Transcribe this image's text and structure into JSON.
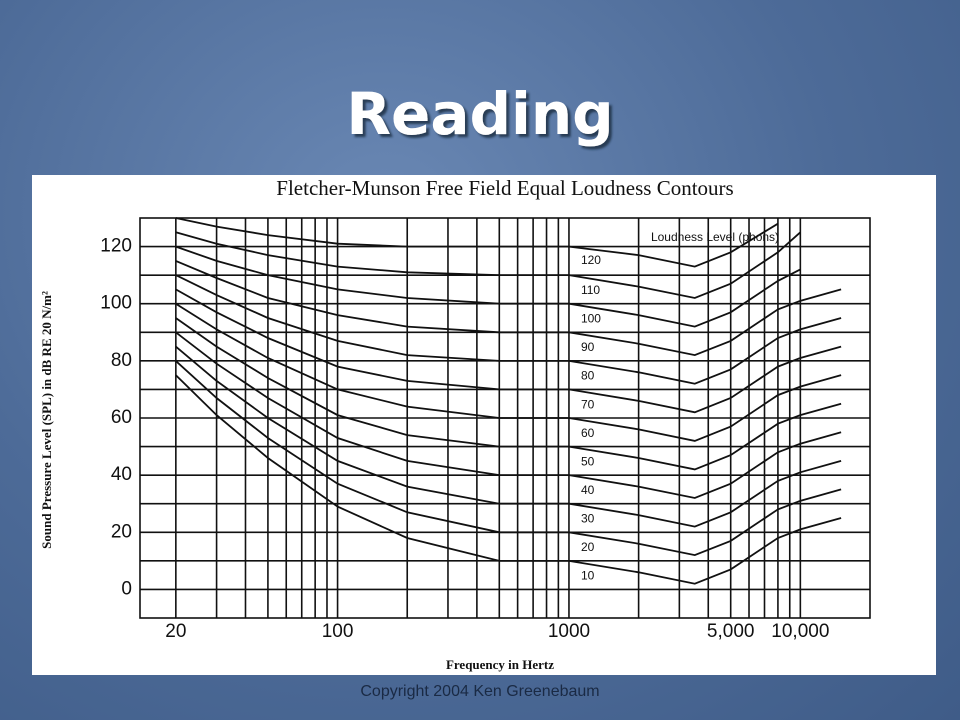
{
  "title": "Reading",
  "footer": "Copyright 2004 Ken Greenebaum",
  "chart_data": {
    "type": "line",
    "title": "Fletcher-Munson Free Field Equal Loudness Contours",
    "x_label": "Frequency in Hertz",
    "y_label": "Sound Pressure Level (SPL) in dB RE 20 N/m²",
    "legend_title": "Loudness Level (phons)",
    "x_scale": "log",
    "grid": true,
    "color": "#111111",
    "x": [
      20,
      30,
      50,
      100,
      200,
      500,
      1000,
      2000,
      3500,
      5000,
      8000,
      10000,
      15000
    ],
    "xlim": [
      14,
      20000
    ],
    "xticks": [
      20,
      100,
      1000,
      {
        "value": 5000,
        "label": "5,000"
      },
      {
        "value": 10000,
        "label": "10,000"
      }
    ],
    "minor_xticks": [
      30,
      40,
      50,
      60,
      70,
      80,
      90,
      200,
      300,
      400,
      500,
      600,
      700,
      800,
      900,
      2000,
      3000,
      4000,
      6000,
      7000,
      8000,
      9000
    ],
    "ylim": [
      -10,
      130
    ],
    "yticks": [
      0,
      20,
      40,
      60,
      80,
      100,
      120
    ],
    "minor_yticks": [
      10,
      30,
      50,
      70,
      90,
      110
    ],
    "series": [
      {
        "name": "120",
        "values": [
          130,
          127,
          124,
          121,
          120,
          120,
          120,
          117,
          113,
          118,
          128,
          null,
          null
        ]
      },
      {
        "name": "110",
        "values": [
          125,
          121,
          117,
          113,
          111,
          110,
          110,
          106,
          102,
          107,
          118,
          125,
          null
        ]
      },
      {
        "name": "100",
        "values": [
          120,
          115,
          110,
          105,
          102,
          100,
          100,
          96,
          92,
          97,
          108,
          112,
          null
        ]
      },
      {
        "name": "90",
        "values": [
          115,
          109,
          102,
          96,
          92,
          90,
          90,
          86,
          82,
          87,
          98,
          101,
          105
        ]
      },
      {
        "name": "80",
        "values": [
          110,
          103,
          95,
          87,
          82,
          80,
          80,
          76,
          72,
          77,
          88,
          91,
          95
        ]
      },
      {
        "name": "70",
        "values": [
          105,
          97,
          88,
          78,
          73,
          70,
          70,
          66,
          62,
          67,
          78,
          81,
          85
        ]
      },
      {
        "name": "60",
        "values": [
          100,
          91,
          81,
          70,
          64,
          60,
          60,
          56,
          52,
          57,
          68,
          71,
          75
        ]
      },
      {
        "name": "50",
        "values": [
          95,
          85,
          74,
          61,
          54,
          50,
          50,
          46,
          42,
          47,
          58,
          61,
          65
        ]
      },
      {
        "name": "40",
        "values": [
          90,
          79,
          67,
          53,
          45,
          40,
          40,
          36,
          32,
          37,
          48,
          51,
          55
        ]
      },
      {
        "name": "30",
        "values": [
          85,
          73,
          60,
          45,
          36,
          30,
          30,
          26,
          22,
          27,
          38,
          41,
          45
        ]
      },
      {
        "name": "20",
        "values": [
          80,
          67,
          53,
          37,
          27,
          20,
          20,
          16,
          12,
          17,
          28,
          31,
          35
        ]
      },
      {
        "name": "10",
        "values": [
          75,
          61,
          46,
          29,
          18,
          10,
          10,
          6,
          2,
          7,
          18,
          21,
          25
        ]
      }
    ]
  }
}
